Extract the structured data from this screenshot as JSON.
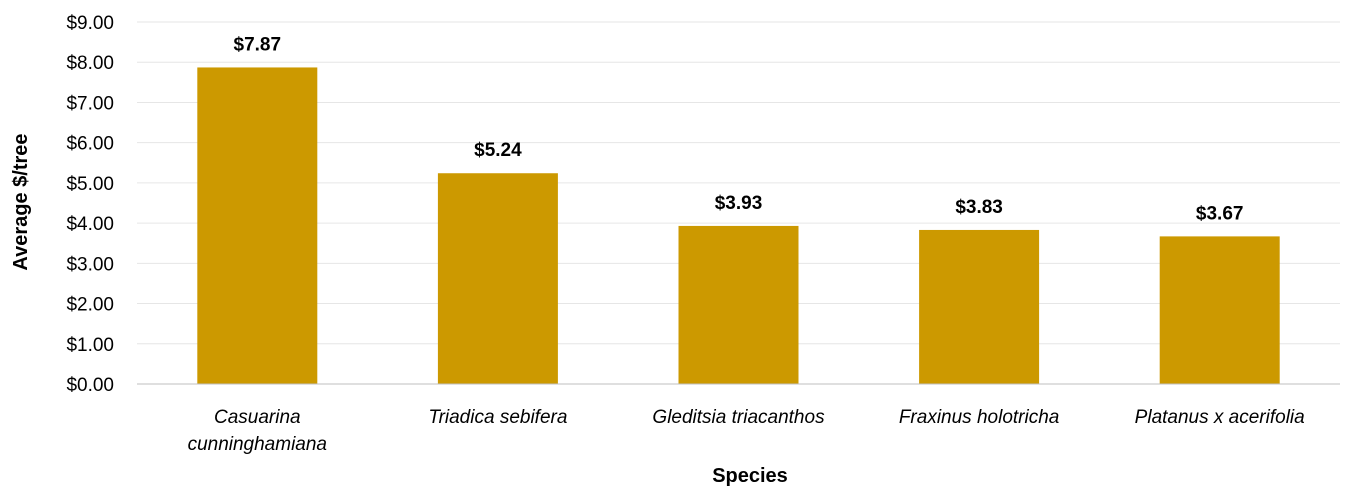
{
  "chart_data": {
    "type": "bar",
    "title": "",
    "xlabel": "Species",
    "ylabel": "Average $/tree",
    "categories": [
      [
        "Casuarina",
        "cunninghamiana"
      ],
      [
        "Triadica sebifera"
      ],
      [
        "Gleditsia triacanthos"
      ],
      [
        "Fraxinus holotricha"
      ],
      [
        "Platanus x acerifolia"
      ]
    ],
    "values": [
      7.87,
      5.24,
      3.93,
      3.83,
      3.67
    ],
    "data_labels": [
      "$7.87",
      "$5.24",
      "$3.93",
      "$3.83",
      "$3.67"
    ],
    "yticks": [
      0,
      1,
      2,
      3,
      4,
      5,
      6,
      7,
      8,
      9
    ],
    "ytick_labels": [
      "$0.00",
      "$1.00",
      "$2.00",
      "$3.00",
      "$4.00",
      "$5.00",
      "$6.00",
      "$7.00",
      "$8.00",
      "$9.00"
    ],
    "ylim": [
      0,
      9
    ],
    "grid": true,
    "bar_color": "#CC9900",
    "grid_color": "#E6E6E6",
    "axis_color": "#BFBFBF"
  }
}
